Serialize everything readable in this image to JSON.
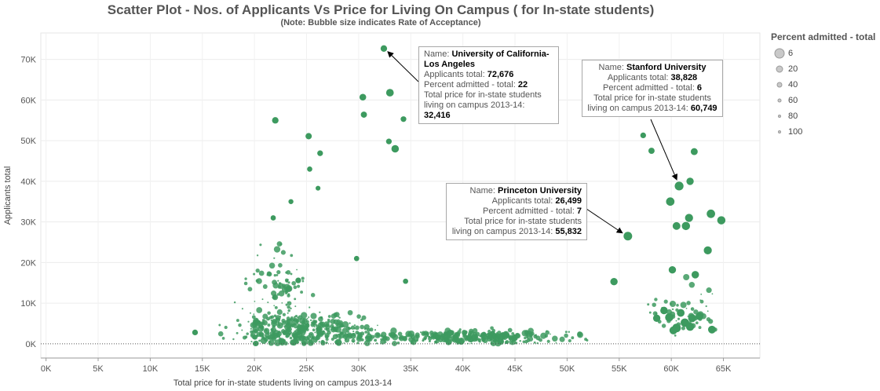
{
  "chart_data": {
    "type": "scatter",
    "title": "Scatter Plot - Nos. of Applicants Vs Price for Living On Campus ( for In-state students)",
    "subtitle": "(Note: Bubble size indicates Rate of Acceptance)",
    "xlabel": "Total price for in-state students living on campus 2013-14",
    "ylabel": "Applicants total",
    "xlim": [
      -500,
      68500
    ],
    "ylim": [
      -3500,
      76500
    ],
    "x_ticks": [
      "0K",
      "5K",
      "10K",
      "15K",
      "20K",
      "25K",
      "30K",
      "35K",
      "40K",
      "45K",
      "50K",
      "55K",
      "60K",
      "65K"
    ],
    "y_ticks": [
      "0K",
      "10K",
      "20K",
      "30K",
      "40K",
      "50K",
      "60K",
      "70K"
    ],
    "legend": {
      "title": "Percent admitted - total",
      "position": "right",
      "items": [
        "6",
        "20",
        "40",
        "60",
        "80",
        "100"
      ]
    },
    "color": "#3d9a5f",
    "highlighted_points": [
      {
        "x": 32416,
        "y": 72676,
        "pct": 22
      },
      {
        "x": 60749,
        "y": 38828,
        "pct": 6
      },
      {
        "x": 55832,
        "y": 26499,
        "pct": 7
      },
      {
        "x": 30400,
        "y": 60700,
        "pct": 20
      },
      {
        "x": 33000,
        "y": 61800,
        "pct": 13
      },
      {
        "x": 22000,
        "y": 55000,
        "pct": 22
      },
      {
        "x": 30500,
        "y": 56400,
        "pct": 25
      },
      {
        "x": 34300,
        "y": 55300,
        "pct": 30
      },
      {
        "x": 25200,
        "y": 51100,
        "pct": 24
      },
      {
        "x": 33500,
        "y": 48000,
        "pct": 14
      },
      {
        "x": 32900,
        "y": 49800,
        "pct": 30
      },
      {
        "x": 26300,
        "y": 46900,
        "pct": 30
      },
      {
        "x": 25300,
        "y": 43000,
        "pct": 35
      },
      {
        "x": 59900,
        "y": 35000,
        "pct": 8
      },
      {
        "x": 63800,
        "y": 32000,
        "pct": 8
      },
      {
        "x": 64800,
        "y": 30400,
        "pct": 9
      },
      {
        "x": 61700,
        "y": 31000,
        "pct": 10
      },
      {
        "x": 61400,
        "y": 29000,
        "pct": 9
      },
      {
        "x": 60500,
        "y": 29000,
        "pct": 12
      },
      {
        "x": 61800,
        "y": 40000,
        "pct": 15
      },
      {
        "x": 62200,
        "y": 47300,
        "pct": 18
      },
      {
        "x": 58100,
        "y": 47500,
        "pct": 25
      },
      {
        "x": 57300,
        "y": 51300,
        "pct": 30
      },
      {
        "x": 63500,
        "y": 23000,
        "pct": 10
      },
      {
        "x": 62300,
        "y": 17000,
        "pct": 14
      },
      {
        "x": 60100,
        "y": 18200,
        "pct": 15
      },
      {
        "x": 54500,
        "y": 15300,
        "pct": 15
      },
      {
        "x": 63900,
        "y": 3500,
        "pct": 12
      },
      {
        "x": 60500,
        "y": 3900,
        "pct": 7
      },
      {
        "x": 61300,
        "y": 5200,
        "pct": 8
      },
      {
        "x": 62000,
        "y": 6300,
        "pct": 10
      },
      {
        "x": 59800,
        "y": 6500,
        "pct": 9
      },
      {
        "x": 61800,
        "y": 4200,
        "pct": 9
      },
      {
        "x": 60900,
        "y": 7600,
        "pct": 12
      },
      {
        "x": 59300,
        "y": 8200,
        "pct": 14
      },
      {
        "x": 62700,
        "y": 6800,
        "pct": 12
      },
      {
        "x": 58600,
        "y": 6300,
        "pct": 15
      },
      {
        "x": 60200,
        "y": 3300,
        "pct": 11
      },
      {
        "x": 21800,
        "y": 31000,
        "pct": 35
      },
      {
        "x": 26100,
        "y": 38300,
        "pct": 40
      },
      {
        "x": 23500,
        "y": 35000,
        "pct": 38
      },
      {
        "x": 24200,
        "y": 15600,
        "pct": 30
      },
      {
        "x": 14300,
        "y": 2800,
        "pct": 30
      },
      {
        "x": 29800,
        "y": 21000,
        "pct": 35
      },
      {
        "x": 34500,
        "y": 15400,
        "pct": 35
      }
    ],
    "tooltips": [
      {
        "name_label": "Name:",
        "name": "University of California-Los Angeles",
        "applicants_label": "Applicants total:",
        "applicants": "72,676",
        "pct_label": "Percent admitted - total:",
        "pct": "22",
        "price_label_1": "Total price for in-state students",
        "price_label_2": "living on campus 2013-14:",
        "price": "32,416"
      },
      {
        "name_label": "Name:",
        "name": "Stanford University",
        "applicants_label": "Applicants total:",
        "applicants": "38,828",
        "pct_label": "Percent admitted - total:",
        "pct": "6",
        "price_label_1": "Total price for in-state students",
        "price_label_2": "living on campus 2013-14:",
        "price": "60,749"
      },
      {
        "name_label": "Name:",
        "name": "Princeton University",
        "applicants_label": "Applicants total:",
        "applicants": "26,499",
        "pct_label": "Percent admitted - total:",
        "pct": "7",
        "price_label_1": "Total price for in-state students",
        "price_label_2": "living on campus 2013-14:",
        "price": "55,832"
      }
    ]
  }
}
